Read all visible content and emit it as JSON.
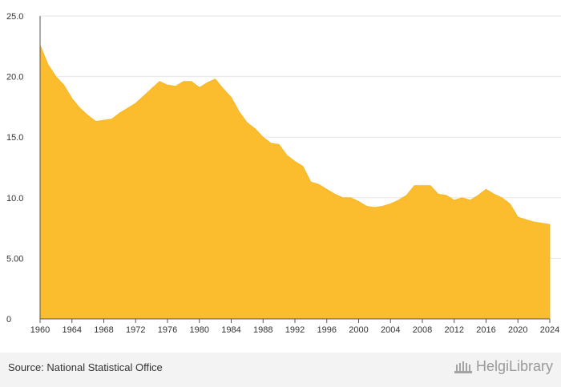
{
  "chart_data": {
    "type": "area",
    "title": "",
    "xlabel": "",
    "ylabel": "",
    "xlim": [
      1960,
      2024
    ],
    "ylim": [
      0,
      25
    ],
    "yticks": [
      "0",
      "5.00",
      "10.0",
      "15.0",
      "20.0",
      "25.0"
    ],
    "xticks": [
      "1960",
      "1964",
      "1968",
      "1972",
      "1976",
      "1980",
      "1984",
      "1988",
      "1992",
      "1996",
      "2000",
      "2004",
      "2008",
      "2012",
      "2016",
      "2020",
      "2024"
    ],
    "grid": "horizontal",
    "colors": {
      "fill": "#FBBC2E",
      "grid": "#e6e6e6",
      "axis": "#555555"
    },
    "series": [
      {
        "x": [
          1960,
          1961,
          1962,
          1963,
          1964,
          1965,
          1966,
          1967,
          1968,
          1969,
          1970,
          1971,
          1972,
          1973,
          1974,
          1975,
          1976,
          1977,
          1978,
          1979,
          1980,
          1981,
          1982,
          1983,
          1984,
          1985,
          1986,
          1987,
          1988,
          1989,
          1990,
          1991,
          1992,
          1993,
          1994,
          1995,
          1996,
          1997,
          1998,
          1999,
          2000,
          2001,
          2002,
          2003,
          2004,
          2005,
          2006,
          2007,
          2008,
          2009,
          2010,
          2011,
          2012,
          2013,
          2014,
          2015,
          2016,
          2017,
          2018,
          2019,
          2020,
          2021,
          2022,
          2023,
          2024
        ],
        "values": [
          22.6,
          21.0,
          20.0,
          19.3,
          18.2,
          17.4,
          16.8,
          16.3,
          16.4,
          16.5,
          17.0,
          17.4,
          17.8,
          18.4,
          19.0,
          19.6,
          19.3,
          19.2,
          19.6,
          19.6,
          19.1,
          19.5,
          19.8,
          19.0,
          18.3,
          17.1,
          16.2,
          15.7,
          15.0,
          14.5,
          14.4,
          13.5,
          13.0,
          12.6,
          11.3,
          11.1,
          10.7,
          10.3,
          10.0,
          10.0,
          9.7,
          9.3,
          9.2,
          9.3,
          9.5,
          9.8,
          10.2,
          11.0,
          11.0,
          11.0,
          10.3,
          10.2,
          9.8,
          10.0,
          9.8,
          10.2,
          10.7,
          10.3,
          10.0,
          9.5,
          8.4,
          8.2,
          8.0,
          7.9,
          7.8
        ]
      }
    ]
  },
  "footer": {
    "source": "Source: National Statistical Office",
    "brand": "HelgiLibrary",
    "brand_icon": "library-building-icon"
  }
}
